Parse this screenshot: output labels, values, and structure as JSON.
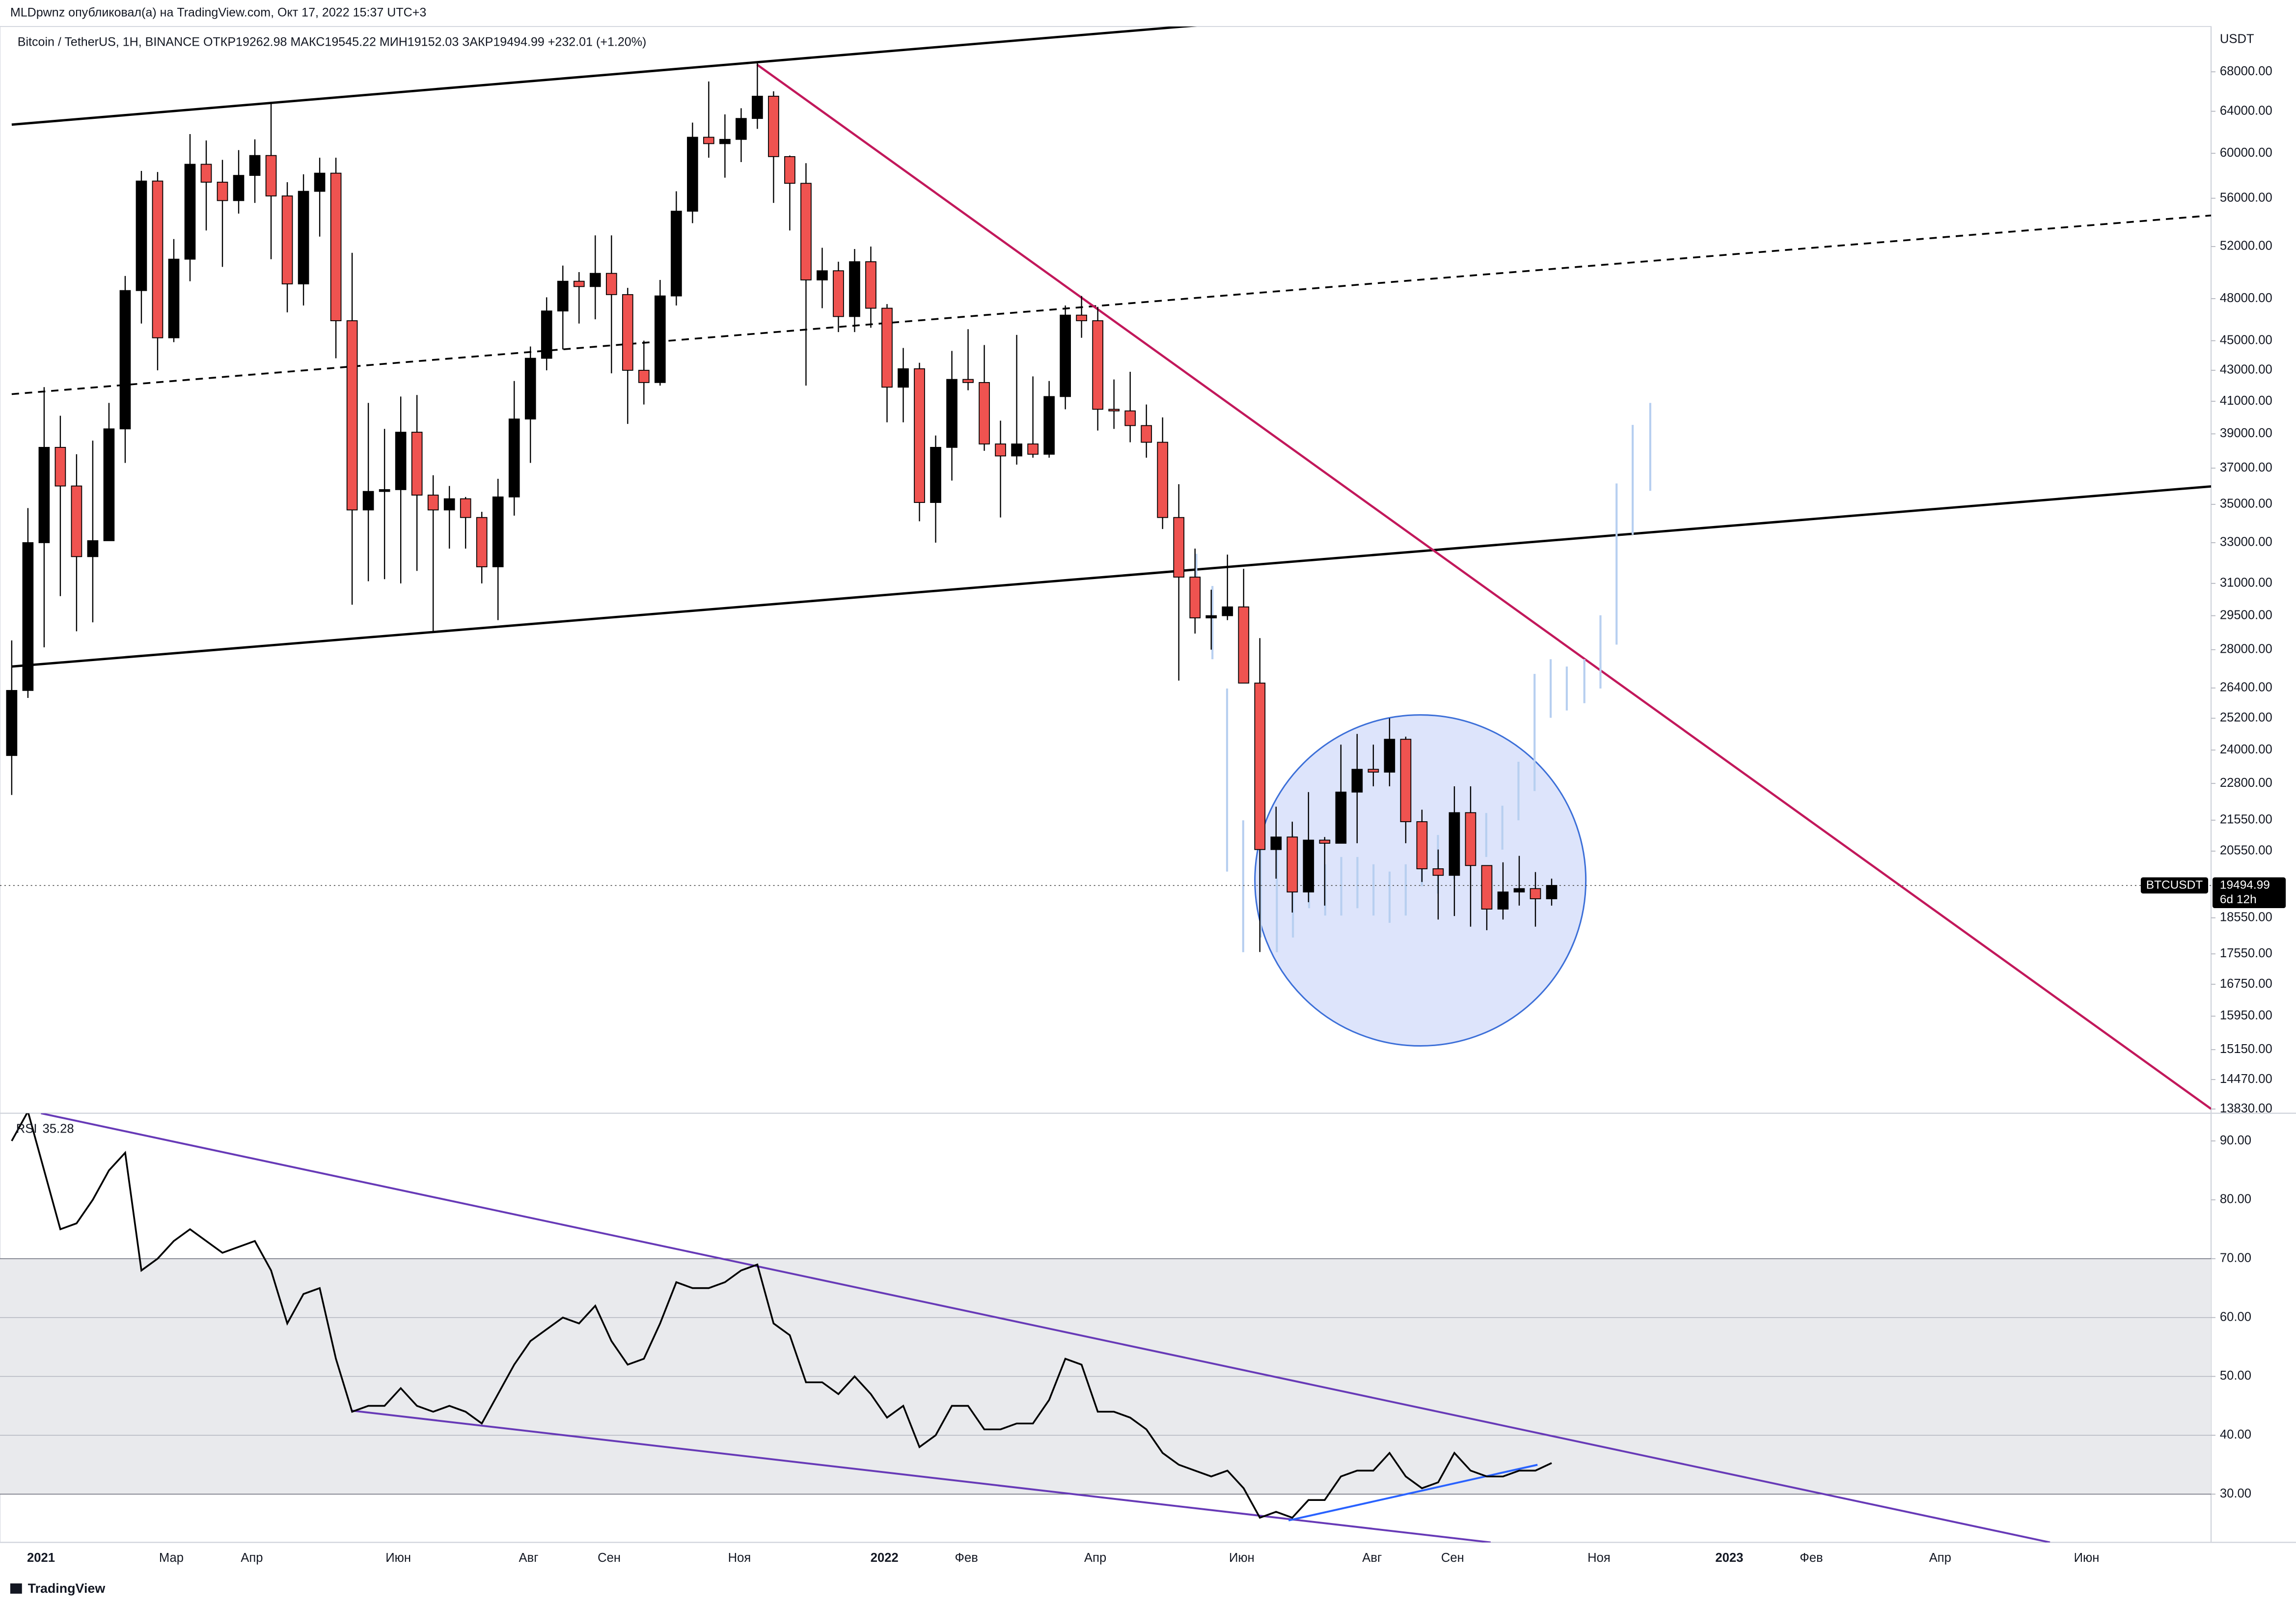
{
  "header": {
    "publisher": "MLDpwnz опубликовал(а) на TradingView.com, Окт 17, 2022 15:37 UTC+3"
  },
  "footer": {
    "brand": "TradingView"
  },
  "chart_data": [
    {
      "type": "candlestick",
      "title": "Bitcoin / TetherUS, 1H, BINANCE  ОТКР19262.98  МАКС19545.22  МИН19152.03  ЗАКР19494.99  +232.01 (+1.20%)",
      "y_unit": "USDT",
      "log_scale": true,
      "up_color": "#000000",
      "down_color": "#ef5350",
      "last_price": 19494.99,
      "last_price_symbol": "BTCUSDT",
      "countdown": "6d 12h",
      "open": [
        23800,
        26300,
        33000,
        38200,
        36000,
        32300,
        33100,
        39300,
        48600,
        57500,
        45200,
        51000,
        59000,
        57400,
        55800,
        58000,
        59800,
        56200,
        49100,
        56600,
        58200,
        46400,
        34700,
        35700,
        35800,
        39100,
        35500,
        34700,
        35300,
        34300,
        31800,
        35400,
        39900,
        43800,
        47100,
        49300,
        48900,
        49900,
        48300,
        43000,
        42200,
        48200,
        54900,
        61500,
        60900,
        61300,
        63300,
        65500,
        59700,
        57300,
        49400,
        50100,
        46700,
        50800,
        47300,
        41900,
        43100,
        35100,
        38200,
        42400,
        42200,
        38400,
        37700,
        38400,
        37800,
        41300,
        46800,
        46400,
        40500,
        40400,
        39500,
        38500,
        34300,
        31300,
        29400,
        29500,
        29900,
        26600,
        20600,
        21000,
        19300,
        20900,
        20800,
        22500,
        23300,
        23200,
        24400,
        21500,
        20000,
        19800,
        21800,
        20100,
        18800,
        19300,
        19400,
        19100
      ],
      "high": [
        28400,
        34800,
        41900,
        40100,
        37800,
        38600,
        40900,
        49700,
        58400,
        58300,
        52600,
        61800,
        61200,
        59400,
        60300,
        61300,
        64900,
        57400,
        58100,
        59600,
        59600,
        51500,
        40900,
        39300,
        41300,
        41400,
        36600,
        36000,
        35400,
        34600,
        36400,
        42300,
        44600,
        48100,
        50500,
        50000,
        52900,
        52900,
        48800,
        45000,
        49400,
        56600,
        62900,
        67000,
        63700,
        64300,
        69000,
        66000,
        59800,
        59100,
        51900,
        50800,
        51800,
        52000,
        47600,
        44500,
        43500,
        38900,
        44300,
        45800,
        44700,
        39800,
        45400,
        42600,
        42300,
        47500,
        48200,
        47400,
        42400,
        42900,
        40800,
        40000,
        36100,
        32700,
        30700,
        32400,
        31700,
        28500,
        22000,
        21500,
        22500,
        21000,
        24200,
        24600,
        24200,
        25200,
        24500,
        21900,
        20600,
        22700,
        22700,
        19800,
        20200,
        20400,
        19900,
        19700
      ],
      "low": [
        22400,
        26000,
        28100,
        30400,
        28800,
        29200,
        33400,
        37300,
        46200,
        43000,
        44900,
        49300,
        53300,
        50400,
        54700,
        55600,
        51000,
        47000,
        47500,
        52800,
        43800,
        30000,
        31100,
        31200,
        31000,
        31600,
        28800,
        32700,
        32700,
        31000,
        29300,
        34400,
        37300,
        43000,
        44400,
        46200,
        46500,
        42800,
        39600,
        40800,
        42000,
        47500,
        53900,
        59600,
        57800,
        59200,
        62300,
        55600,
        53300,
        42000,
        47300,
        45600,
        45600,
        45900,
        39700,
        39700,
        34100,
        33000,
        36300,
        41700,
        38000,
        34300,
        37200,
        37600,
        37600,
        40500,
        45200,
        39200,
        39300,
        38500,
        37600,
        33700,
        26700,
        28700,
        28000,
        29300,
        26600,
        17600,
        19700,
        18700,
        19000,
        18900,
        20800,
        20800,
        22700,
        22700,
        20800,
        19600,
        18500,
        18600,
        18300,
        18200,
        18500,
        18900,
        18300,
        18900
      ],
      "close": [
        26300,
        33000,
        38200,
        36000,
        32300,
        33100,
        39300,
        48600,
        57500,
        45200,
        51000,
        59000,
        57400,
        55800,
        58000,
        59800,
        56200,
        49100,
        56600,
        58200,
        46400,
        34700,
        35700,
        35800,
        39100,
        35500,
        34700,
        35300,
        34300,
        31800,
        35400,
        39900,
        43800,
        47100,
        49300,
        48900,
        49900,
        48300,
        43000,
        42200,
        48200,
        54900,
        61500,
        60900,
        61300,
        63300,
        65500,
        59700,
        57300,
        49400,
        50100,
        46700,
        50800,
        47300,
        41900,
        43100,
        35100,
        38200,
        42400,
        42200,
        38400,
        37700,
        38400,
        37800,
        41300,
        46800,
        46400,
        40500,
        40400,
        39500,
        38500,
        34300,
        31300,
        29400,
        29500,
        29900,
        26600,
        20600,
        21000,
        19300,
        20900,
        20800,
        22500,
        23300,
        23200,
        24400,
        21500,
        20000,
        19800,
        21800,
        20100,
        18800,
        19300,
        19400,
        19100,
        19494.99
      ],
      "ylim": [
        13740,
        72900
      ],
      "yticks": [
        {
          "value": 68000,
          "label": "68000.00"
        },
        {
          "value": 64000,
          "label": "64000.00"
        },
        {
          "value": 60000,
          "label": "60000.00"
        },
        {
          "value": 56000,
          "label": "56000.00"
        },
        {
          "value": 52000,
          "label": "52000.00"
        },
        {
          "value": 48000,
          "label": "48000.00"
        },
        {
          "value": 45000,
          "label": "45000.00"
        },
        {
          "value": 43000,
          "label": "43000.00"
        },
        {
          "value": 41000,
          "label": "41000.00"
        },
        {
          "value": 39000,
          "label": "39000.00"
        },
        {
          "value": 37000,
          "label": "37000.00"
        },
        {
          "value": 35000,
          "label": "35000.00"
        },
        {
          "value": 33000,
          "label": "33000.00"
        },
        {
          "value": 31000,
          "label": "31000.00"
        },
        {
          "value": 29500,
          "label": "29500.00"
        },
        {
          "value": 28000,
          "label": "28000.00"
        },
        {
          "value": 26400,
          "label": "26400.00"
        },
        {
          "value": 25200,
          "label": "25200.00"
        },
        {
          "value": 24000,
          "label": "24000.00"
        },
        {
          "value": 22800,
          "label": "22800.00"
        },
        {
          "value": 21550,
          "label": "21550.00"
        },
        {
          "value": 20550,
          "label": "20550.00"
        },
        {
          "value": 18550,
          "label": "18550.00"
        },
        {
          "value": 17550,
          "label": "17550.00"
        },
        {
          "value": 16750,
          "label": "16750.00"
        },
        {
          "value": 15950,
          "label": "15950.00"
        },
        {
          "value": 15150,
          "label": "15150.00"
        },
        {
          "value": 14470,
          "label": "14470.00"
        },
        {
          "value": 13830,
          "label": "13830.00"
        }
      ]
    },
    {
      "type": "line",
      "title": "RSI",
      "color": "#000000",
      "band": [
        30,
        70
      ],
      "band_color": "#e9eaed",
      "values": [
        90,
        95,
        85,
        75,
        76,
        80,
        85,
        88,
        68,
        70,
        73,
        75,
        73,
        71,
        72,
        73,
        68,
        59,
        64,
        65,
        53,
        44,
        45,
        45,
        48,
        45,
        44,
        45,
        44,
        42,
        47,
        52,
        56,
        58,
        60,
        59,
        62,
        56,
        52,
        53,
        59,
        66,
        65,
        65,
        66,
        68,
        69,
        59,
        57,
        49,
        49,
        47,
        50,
        47,
        43,
        45,
        38,
        40,
        45,
        45,
        41,
        41,
        42,
        42,
        46,
        53,
        52,
        44,
        44,
        43,
        41,
        37,
        35,
        34,
        33,
        34,
        31,
        26,
        27,
        26,
        29,
        29,
        33,
        34,
        34,
        37,
        33,
        31,
        32,
        37,
        34,
        33,
        33,
        34,
        34,
        35.28
      ],
      "ylim": [
        21.8,
        94.7
      ],
      "yticks": [
        {
          "value": 90,
          "label": "90.00"
        },
        {
          "value": 80,
          "label": "80.00"
        },
        {
          "value": 70,
          "label": "70.00"
        },
        {
          "value": 60,
          "label": "60.00"
        },
        {
          "value": 50,
          "label": "50.00"
        },
        {
          "value": 40,
          "label": "40.00"
        },
        {
          "value": 30,
          "label": "30.00"
        }
      ],
      "x_labels": [
        "2021",
        "Мар",
        "Апр",
        "Июн",
        "Авг",
        "Сен",
        "Ноя",
        "2022",
        "Фев",
        "Апр",
        "Июн",
        "Авг",
        "Сен",
        "Ноя",
        "2023",
        "Фев",
        "Апр",
        "Июн"
      ]
    }
  ]
}
